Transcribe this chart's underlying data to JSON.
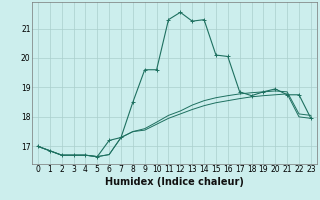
{
  "xlabel": "Humidex (Indice chaleur)",
  "bg_color": "#cceeed",
  "grid_color": "#aacfcc",
  "line_color": "#1e7060",
  "x": [
    0,
    1,
    2,
    3,
    4,
    5,
    6,
    7,
    8,
    9,
    10,
    11,
    12,
    13,
    14,
    15,
    16,
    17,
    18,
    19,
    20,
    21,
    22,
    23
  ],
  "y_main": [
    17.0,
    16.85,
    16.7,
    16.7,
    16.7,
    16.65,
    17.2,
    17.3,
    18.5,
    19.6,
    19.6,
    21.3,
    21.55,
    21.25,
    21.3,
    20.1,
    20.05,
    18.85,
    18.72,
    18.85,
    18.95,
    18.75,
    18.75,
    17.95
  ],
  "y_low": [
    17.0,
    16.85,
    16.7,
    16.7,
    16.7,
    16.65,
    16.72,
    17.3,
    17.5,
    17.55,
    17.75,
    17.95,
    18.1,
    18.25,
    18.38,
    18.48,
    18.55,
    18.62,
    18.68,
    18.72,
    18.75,
    18.78,
    18.0,
    17.95
  ],
  "y_mid": [
    17.0,
    16.85,
    16.7,
    16.7,
    16.7,
    16.65,
    16.72,
    17.3,
    17.5,
    17.6,
    17.82,
    18.05,
    18.2,
    18.4,
    18.55,
    18.65,
    18.72,
    18.78,
    18.82,
    18.85,
    18.88,
    18.85,
    18.1,
    18.05
  ],
  "ylim": [
    16.4,
    21.9
  ],
  "yticks": [
    17,
    18,
    19,
    20,
    21
  ],
  "xticks": [
    0,
    1,
    2,
    3,
    4,
    5,
    6,
    7,
    8,
    9,
    10,
    11,
    12,
    13,
    14,
    15,
    16,
    17,
    18,
    19,
    20,
    21,
    22,
    23
  ],
  "tick_fontsize": 5.5,
  "label_fontsize": 7.0
}
